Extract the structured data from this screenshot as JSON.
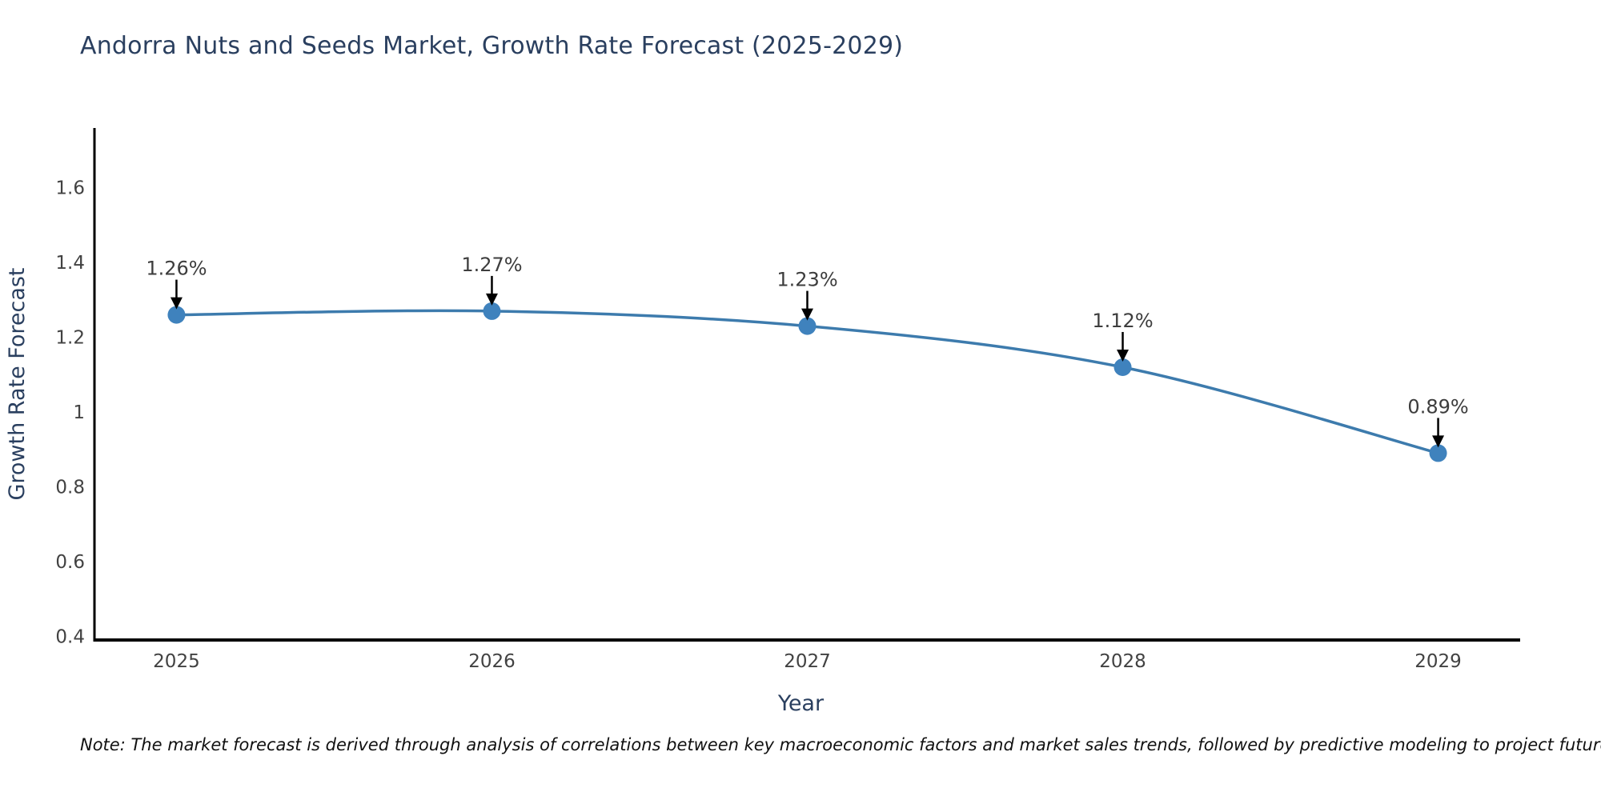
{
  "title": "Andorra Nuts and Seeds Market, Growth Rate Forecast (2025-2029)",
  "note": {
    "text": "Note: The market forecast is derived through analysis of correlations between key macroeconomic factors and market sales trends, followed by predictive modeling to project future sales"
  },
  "chart_data": {
    "type": "line",
    "title": "Andorra Nuts and Seeds Market, Growth Rate Forecast (2025-2029)",
    "xlabel": "Year",
    "ylabel": "Growth Rate Forecast",
    "x": [
      2025,
      2026,
      2027,
      2028,
      2029
    ],
    "categories": [
      "2025",
      "2026",
      "2027",
      "2028",
      "2029"
    ],
    "series": [
      {
        "name": "Growth Rate Forecast",
        "values": [
          1.26,
          1.27,
          1.23,
          1.12,
          0.89
        ]
      }
    ],
    "annotations": [
      "1.26%",
      "1.27%",
      "1.23%",
      "1.12%",
      "0.89%"
    ],
    "xlim": [
      2024.74,
      2029.26
    ],
    "ylim": [
      0.39,
      1.76
    ],
    "yticks": [
      0.4,
      0.6,
      0.8,
      1,
      1.2,
      1.4,
      1.6
    ],
    "ytick_labels": [
      "0.4",
      "0.6",
      "0.8",
      "1",
      "1.2",
      "1.4",
      "1.6"
    ],
    "grid": false,
    "legend": "none",
    "line_shape": "spline",
    "marker_style": "circle",
    "colors": {
      "line": "#3d7bad",
      "marker": "#3f82bd",
      "axis": "#000000",
      "tick_text": "#424242",
      "annotation_text": "#3d3d3d",
      "annotation_arrow": "#000000",
      "title_text": "#2a3f5f",
      "axis_title_text": "#2a3f5f",
      "note_text": "#111111"
    }
  }
}
